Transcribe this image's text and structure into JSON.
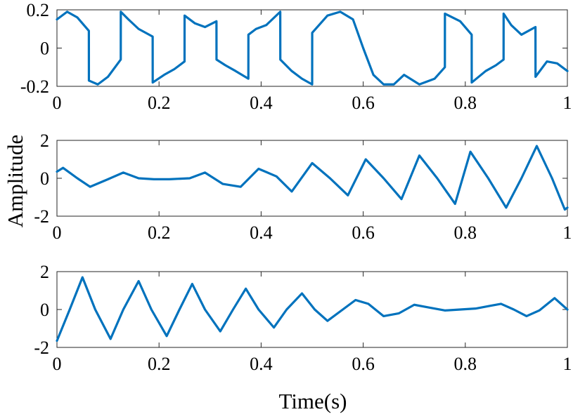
{
  "figure": {
    "xlabel": "Time(s)",
    "ylabel": "Amplitude",
    "line_color": "#0072BD",
    "axis_color": "#262626"
  },
  "chart_data": [
    {
      "type": "line",
      "title": "",
      "xlabel": "",
      "ylabel": "",
      "xlim": [
        0,
        1
      ],
      "ylim": [
        -0.2,
        0.2
      ],
      "xticks": [
        0,
        0.2,
        0.4,
        0.6,
        0.8,
        1
      ],
      "xtick_labels": [
        "0",
        "0.2",
        "0.4",
        "0.6",
        "0.8",
        "1"
      ],
      "yticks": [
        -0.2,
        0,
        0.2
      ],
      "ytick_labels": [
        "-0.2",
        "0",
        "0.2"
      ],
      "grid": false,
      "series": [
        {
          "x": [
            0,
            0.02,
            0.04,
            0.0625,
            0.0626,
            0.08,
            0.1,
            0.125,
            0.1251,
            0.14,
            0.16,
            0.1875,
            0.1876,
            0.21,
            0.23,
            0.25,
            0.2501,
            0.27,
            0.29,
            0.3125,
            0.3126,
            0.33,
            0.35,
            0.375,
            0.3751,
            0.39,
            0.41,
            0.4375,
            0.4376,
            0.46,
            0.48,
            0.5,
            0.5001,
            0.53,
            0.555,
            0.58,
            0.6,
            0.62,
            0.64,
            0.66,
            0.68,
            0.71,
            0.74,
            0.76,
            0.7601,
            0.79,
            0.8125,
            0.8126,
            0.84,
            0.86,
            0.875,
            0.8751,
            0.89,
            0.91,
            0.9375,
            0.9376,
            0.96,
            0.98,
            1.0
          ],
          "y": [
            0.15,
            0.19,
            0.16,
            0.09,
            -0.17,
            -0.19,
            -0.15,
            -0.06,
            0.19,
            0.15,
            0.1,
            0.06,
            -0.18,
            -0.14,
            -0.11,
            -0.07,
            0.17,
            0.13,
            0.11,
            0.14,
            -0.06,
            -0.09,
            -0.12,
            -0.16,
            0.07,
            0.1,
            0.12,
            0.19,
            -0.06,
            -0.12,
            -0.16,
            -0.19,
            0.08,
            0.17,
            0.19,
            0.15,
            0.0,
            -0.14,
            -0.19,
            -0.19,
            -0.14,
            -0.19,
            -0.16,
            -0.1,
            0.18,
            0.14,
            0.07,
            -0.18,
            -0.12,
            -0.09,
            -0.06,
            0.18,
            0.12,
            0.07,
            0.11,
            -0.15,
            -0.07,
            -0.08,
            -0.12
          ]
        }
      ]
    },
    {
      "type": "line",
      "title": "",
      "xlabel": "",
      "ylabel": "",
      "xlim": [
        0,
        1
      ],
      "ylim": [
        -2,
        2
      ],
      "xticks": [
        0,
        0.2,
        0.4,
        0.6,
        0.8,
        1
      ],
      "xtick_labels": [
        "0",
        "0.2",
        "0.4",
        "0.6",
        "0.8",
        "1"
      ],
      "yticks": [
        -2,
        0,
        2
      ],
      "ytick_labels": [
        "-2",
        "0",
        "2"
      ],
      "grid": false,
      "series": [
        {
          "x": [
            0,
            0.012,
            0.04,
            0.065,
            0.1,
            0.13,
            0.16,
            0.19,
            0.22,
            0.26,
            0.29,
            0.325,
            0.36,
            0.395,
            0.43,
            0.46,
            0.5,
            0.535,
            0.57,
            0.605,
            0.64,
            0.675,
            0.71,
            0.745,
            0.78,
            0.81,
            0.845,
            0.88,
            0.91,
            0.94,
            0.97,
            0.995,
            1.0
          ],
          "y": [
            0.35,
            0.55,
            0.0,
            -0.45,
            -0.05,
            0.3,
            0.0,
            -0.05,
            -0.05,
            0.0,
            0.3,
            -0.3,
            -0.45,
            0.5,
            0.1,
            -0.7,
            0.8,
            0.0,
            -0.9,
            1.0,
            0.0,
            -1.1,
            1.2,
            0.0,
            -1.35,
            1.4,
            0.0,
            -1.55,
            0.0,
            1.7,
            0.0,
            -1.65,
            -1.55
          ]
        }
      ]
    },
    {
      "type": "line",
      "title": "",
      "xlabel": "",
      "ylabel": "",
      "xlim": [
        0,
        1
      ],
      "ylim": [
        -2,
        2
      ],
      "xticks": [
        0,
        0.2,
        0.4,
        0.6,
        0.8,
        1
      ],
      "xtick_labels": [
        "0",
        "0.2",
        "0.4",
        "0.6",
        "0.8",
        "1"
      ],
      "yticks": [
        -2,
        0,
        2
      ],
      "ytick_labels": [
        "-2",
        "0",
        "2"
      ],
      "grid": false,
      "series": [
        {
          "x": [
            0,
            0.025,
            0.05,
            0.075,
            0.105,
            0.13,
            0.16,
            0.185,
            0.215,
            0.24,
            0.265,
            0.29,
            0.32,
            0.345,
            0.37,
            0.395,
            0.425,
            0.45,
            0.48,
            0.505,
            0.53,
            0.56,
            0.585,
            0.61,
            0.64,
            0.67,
            0.7,
            0.73,
            0.76,
            0.79,
            0.82,
            0.85,
            0.87,
            0.895,
            0.92,
            0.945,
            0.975,
            1.0
          ],
          "y": [
            -1.65,
            0.0,
            1.7,
            0.0,
            -1.55,
            0.0,
            1.5,
            0.0,
            -1.4,
            0.0,
            1.35,
            0.0,
            -1.15,
            0.0,
            1.1,
            0.0,
            -0.95,
            0.0,
            0.85,
            0.0,
            -0.6,
            0.0,
            0.5,
            0.3,
            -0.35,
            -0.2,
            0.25,
            0.1,
            -0.05,
            0.0,
            0.05,
            0.2,
            0.3,
            0.0,
            -0.35,
            -0.05,
            0.6,
            0.0
          ]
        }
      ]
    }
  ]
}
